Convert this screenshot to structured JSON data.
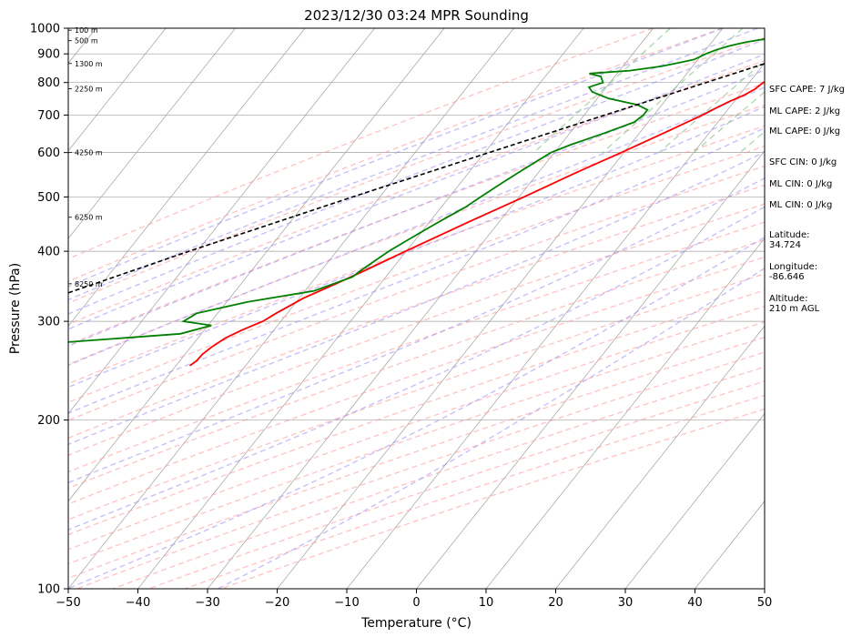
{
  "chart_data": {
    "type": "line",
    "title": "2023/12/30 03:24 MPR Sounding",
    "xlabel": "Temperature (°C)",
    "ylabel": "Pressure (hPa)",
    "xlim": [
      -50,
      50
    ],
    "ylim": [
      1000,
      100
    ],
    "y_scale": "log",
    "skew": "skew-T log-P",
    "x_ticks": [
      -50,
      -40,
      -30,
      -20,
      -10,
      0,
      10,
      20,
      30,
      40,
      50
    ],
    "y_ticks": [
      100,
      200,
      300,
      400,
      500,
      600,
      700,
      800,
      900,
      1000
    ],
    "grid": true,
    "series": [
      {
        "color": "#ff0000",
        "points": [
          [
            1000,
            1.9
          ],
          [
            980,
            -0.8
          ],
          [
            960,
            -1.6
          ],
          [
            940,
            -1.8
          ],
          [
            920,
            -1.8
          ],
          [
            900,
            -1.5
          ],
          [
            880,
            -1.4
          ],
          [
            860,
            -2.9
          ],
          [
            840,
            -4.8
          ],
          [
            820,
            -6.8
          ],
          [
            800,
            -8.0
          ],
          [
            780,
            -8.4
          ],
          [
            760,
            -9.3
          ],
          [
            740,
            -10.7
          ],
          [
            720,
            -11.9
          ],
          [
            700,
            -13.0
          ],
          [
            650,
            -16.5
          ],
          [
            600,
            -20.4
          ],
          [
            550,
            -24.8
          ],
          [
            500,
            -29.3
          ],
          [
            450,
            -34.5
          ],
          [
            400,
            -40.1
          ],
          [
            370,
            -43.7
          ],
          [
            350,
            -46.4
          ],
          [
            330,
            -49.4
          ],
          [
            310,
            -51.6
          ],
          [
            300,
            -52.6
          ],
          [
            290,
            -54.5
          ],
          [
            280,
            -56.1
          ],
          [
            270,
            -57.0
          ],
          [
            262,
            -57.5
          ],
          [
            255,
            -57.6
          ],
          [
            250,
            -58.0
          ]
        ]
      },
      {
        "color": "#008000",
        "points": [
          [
            1000,
            0.0
          ],
          [
            990,
            -1.8
          ],
          [
            975,
            -6.0
          ],
          [
            960,
            -12.0
          ],
          [
            945,
            -15.0
          ],
          [
            930,
            -17.0
          ],
          [
            915,
            -18.5
          ],
          [
            900,
            -19.5
          ],
          [
            880,
            -20.5
          ],
          [
            870,
            -22.0
          ],
          [
            855,
            -24.5
          ],
          [
            840,
            -28.5
          ],
          [
            830,
            -34.0
          ],
          [
            820,
            -32.0
          ],
          [
            800,
            -31.0
          ],
          [
            785,
            -32.5
          ],
          [
            770,
            -31.5
          ],
          [
            750,
            -28.5
          ],
          [
            730,
            -23.5
          ],
          [
            715,
            -21.5
          ],
          [
            700,
            -21.5
          ],
          [
            680,
            -22.0
          ],
          [
            650,
            -25.0
          ],
          [
            620,
            -28.5
          ],
          [
            600,
            -30.5
          ],
          [
            560,
            -32.5
          ],
          [
            530,
            -34.0
          ],
          [
            500,
            -35.5
          ],
          [
            480,
            -36.5
          ],
          [
            460,
            -38.0
          ],
          [
            440,
            -39.5
          ],
          [
            420,
            -41.0
          ],
          [
            400,
            -42.5
          ],
          [
            380,
            -43.7
          ],
          [
            370,
            -44.3
          ],
          [
            360,
            -44.8
          ],
          [
            340,
            -48.7
          ],
          [
            325,
            -57.0
          ],
          [
            310,
            -63.0
          ],
          [
            300,
            -64.0
          ],
          [
            295,
            -59.5
          ],
          [
            285,
            -63.0
          ],
          [
            275,
            -79.0
          ],
          [
            265,
            -99.0
          ]
        ]
      },
      {
        "color": "#000000",
        "dashed": true,
        "points": [
          [
            1000,
            1.9
          ],
          [
            900,
            -6.7
          ],
          [
            800,
            -16.2
          ],
          [
            700,
            -27.0
          ],
          [
            600,
            -39.4
          ],
          [
            500,
            -53.9
          ],
          [
            400,
            -71.2
          ],
          [
            300,
            -92.4
          ],
          [
            270,
            -100.1
          ]
        ]
      }
    ],
    "height_labels": [
      "8250 m",
      "6250 m",
      "4250 m",
      "2250 m",
      "1300 m",
      "500 m",
      "100 m"
    ]
  },
  "indices": {
    "sfc_cape": "SFC CAPE: 7 J/kg",
    "ml_cape_1": "ML CAPE: 2 J/kg",
    "ml_cape_2": "ML CAPE: 0 J/kg",
    "sfc_cin": "SFC CIN: 0 J/kg",
    "ml_cin_1": "ML CIN: 0 J/kg",
    "ml_cin_2": "ML CIN: 0 J/kg",
    "latitude": "Latitude:\n34.724",
    "longitude": "Longitude:\n-86.646",
    "altitude": "Altitude:\n210 m AGL"
  },
  "colors": {
    "temperature": "#ff0000",
    "dewpoint": "#008000",
    "parcel": "#000000",
    "dry_adiabats": "#ff9999",
    "moist_adiabats": "#9b8cf0",
    "mixing_ratio": "#80c080",
    "isotherms": "#a0a0a0"
  }
}
